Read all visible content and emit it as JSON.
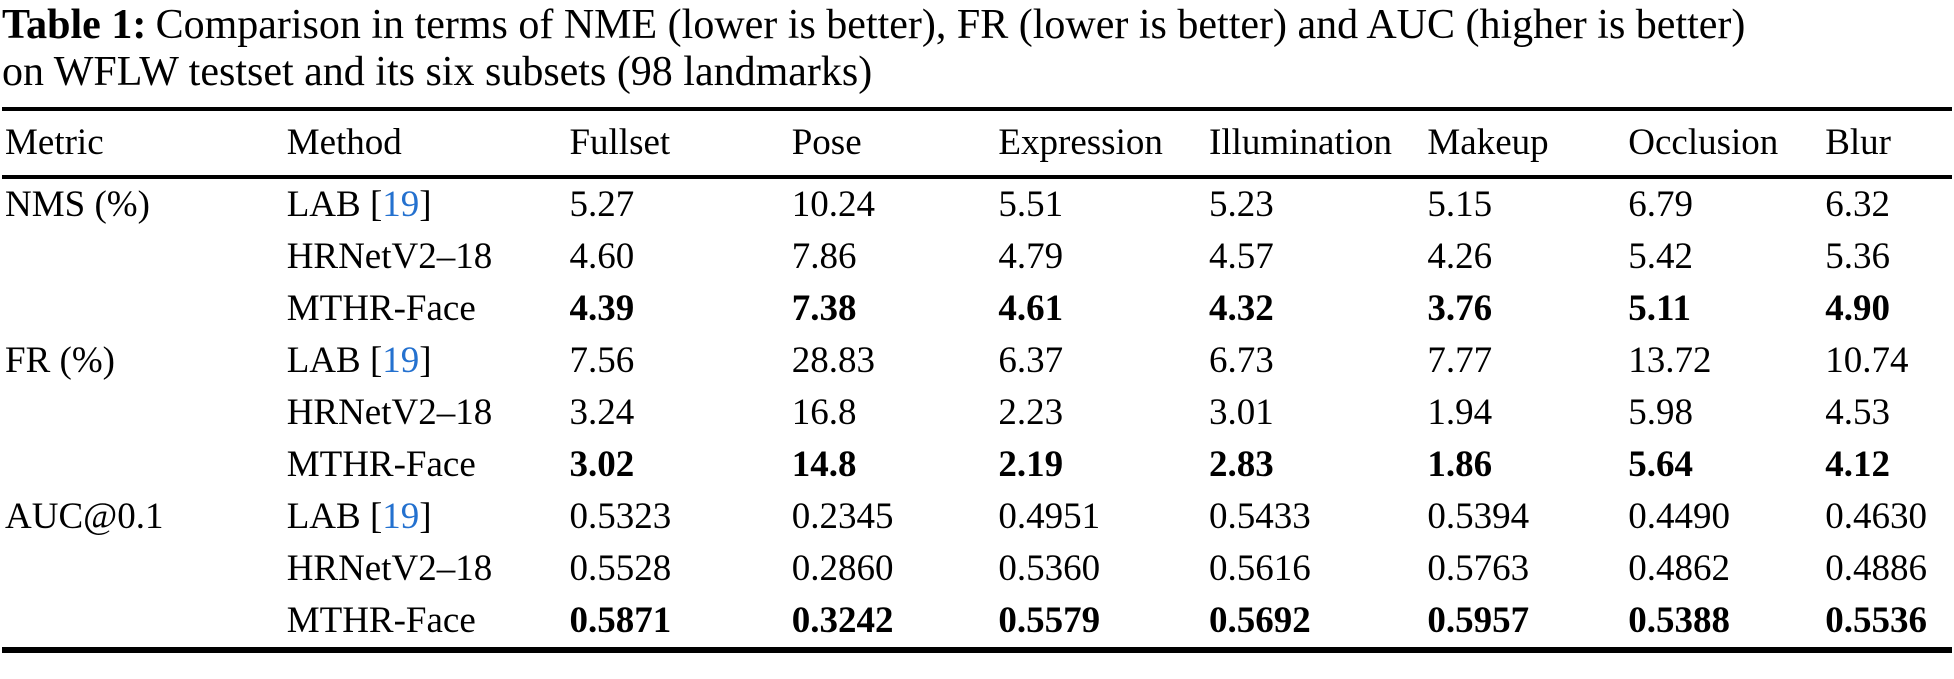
{
  "caption": {
    "label": "Table 1:",
    "line1": "Comparison in terms of NME (lower is better), FR (lower is better) and AUC (higher is better)",
    "line2": "on WFLW testset and its six subsets (98 landmarks)"
  },
  "table": {
    "columns": [
      "Metric",
      "Method",
      "Fullset",
      "Pose",
      "Expression",
      "Illumination",
      "Makeup",
      "Occlusion",
      "Blur"
    ],
    "citation_brackets": [
      "[",
      "]"
    ],
    "citation_color": "#2471cf",
    "rows": [
      {
        "metric": "NMS (%)",
        "method": "LAB",
        "ref": "19",
        "bold": false,
        "values": [
          "5.27",
          "10.24",
          "5.51",
          "5.23",
          "5.15",
          "6.79",
          "6.32"
        ]
      },
      {
        "metric": "",
        "method": "HRNetV2–18",
        "ref": "",
        "bold": false,
        "values": [
          "4.60",
          "7.86",
          "4.79",
          "4.57",
          "4.26",
          "5.42",
          "5.36"
        ]
      },
      {
        "metric": "",
        "method": "MTHR-Face",
        "ref": "",
        "bold": true,
        "values": [
          "4.39",
          "7.38",
          "4.61",
          "4.32",
          "3.76",
          "5.11",
          "4.90"
        ]
      },
      {
        "metric": "FR (%)",
        "method": "LAB",
        "ref": "19",
        "bold": false,
        "values": [
          "7.56",
          "28.83",
          "6.37",
          "6.73",
          "7.77",
          "13.72",
          "10.74"
        ]
      },
      {
        "metric": "",
        "method": "HRNetV2–18",
        "ref": "",
        "bold": false,
        "values": [
          "3.24",
          "16.8",
          "2.23",
          "3.01",
          "1.94",
          "5.98",
          "4.53"
        ]
      },
      {
        "metric": "",
        "method": "MTHR-Face",
        "ref": "",
        "bold": true,
        "values": [
          "3.02",
          "14.8",
          "2.19",
          "2.83",
          "1.86",
          "5.64",
          "4.12"
        ]
      },
      {
        "metric": "AUC@0.1",
        "method": "LAB",
        "ref": "19",
        "bold": false,
        "values": [
          "0.5323",
          "0.2345",
          "0.4951",
          "0.5433",
          "0.5394",
          "0.4490",
          "0.4630"
        ]
      },
      {
        "metric": "",
        "method": "HRNetV2–18",
        "ref": "",
        "bold": false,
        "values": [
          "0.5528",
          "0.2860",
          "0.5360",
          "0.5616",
          "0.5763",
          "0.4862",
          "0.4886"
        ]
      },
      {
        "metric": "",
        "method": "MTHR-Face",
        "ref": "",
        "bold": true,
        "values": [
          "0.5871",
          "0.3242",
          "0.5579",
          "0.5692",
          "0.5957",
          "0.5388",
          "0.5536"
        ]
      }
    ]
  }
}
